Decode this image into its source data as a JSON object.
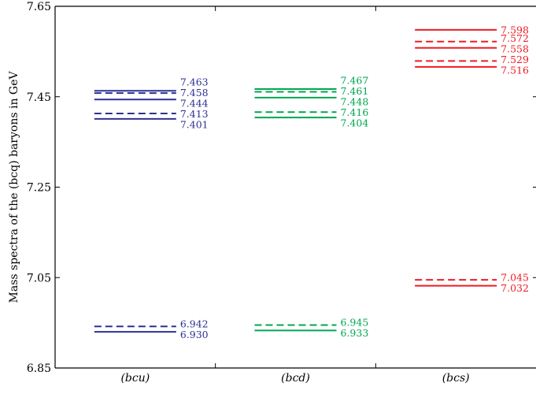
{
  "chart_data": {
    "type": "level-diagram",
    "ylabel": "Mass spectra of the (bcq) baryons in GeV",
    "ylim": [
      6.85,
      7.65
    ],
    "yticks": [
      "6.85",
      "7.05",
      "7.25",
      "7.45",
      "7.65"
    ],
    "categories": [
      "(bcu)",
      "(bcd)",
      "(bcs)"
    ],
    "series": [
      {
        "category": "(bcu)",
        "color": "#2e3192",
        "levels": [
          {
            "value": 7.463,
            "label": "7.463",
            "style": "solid"
          },
          {
            "value": 7.458,
            "label": "7.458",
            "style": "dashed"
          },
          {
            "value": 7.444,
            "label": "7.444",
            "style": "solid"
          },
          {
            "value": 7.413,
            "label": "7.413",
            "style": "dashed"
          },
          {
            "value": 7.401,
            "label": "7.401",
            "style": "solid"
          },
          {
            "value": 6.942,
            "label": "6.942",
            "style": "dashed"
          },
          {
            "value": 6.93,
            "label": "6.930",
            "style": "solid"
          }
        ]
      },
      {
        "category": "(bcd)",
        "color": "#00a651",
        "levels": [
          {
            "value": 7.467,
            "label": "7.467",
            "style": "solid"
          },
          {
            "value": 7.461,
            "label": "7.461",
            "style": "dashed"
          },
          {
            "value": 7.448,
            "label": "7.448",
            "style": "solid"
          },
          {
            "value": 7.416,
            "label": "7.416",
            "style": "dashed"
          },
          {
            "value": 7.404,
            "label": "7.404",
            "style": "solid"
          },
          {
            "value": 6.945,
            "label": "6.945",
            "style": "dashed"
          },
          {
            "value": 6.933,
            "label": "6.933",
            "style": "solid"
          }
        ]
      },
      {
        "category": "(bcs)",
        "color": "#ed1c24",
        "levels": [
          {
            "value": 7.598,
            "label": "7.598",
            "style": "solid"
          },
          {
            "value": 7.572,
            "label": "7.572",
            "style": "dashed"
          },
          {
            "value": 7.558,
            "label": "7.558",
            "style": "solid"
          },
          {
            "value": 7.529,
            "label": "7.529",
            "style": "dashed"
          },
          {
            "value": 7.516,
            "label": "7.516",
            "style": "solid"
          },
          {
            "value": 7.045,
            "label": "7.045",
            "style": "dashed"
          },
          {
            "value": 7.032,
            "label": "7.032",
            "style": "solid"
          }
        ]
      }
    ]
  }
}
